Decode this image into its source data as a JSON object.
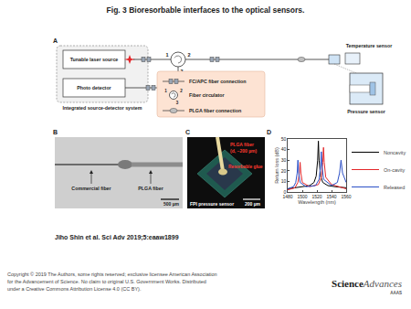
{
  "header": {
    "title": "Fig. 3 Bioresorbable interfaces to the optical sensors."
  },
  "panels": {
    "A": {
      "label": "A",
      "source_detector": {
        "title": "Integrated source-detector system",
        "laser": "Tunable laser source",
        "detector": "Photo detector"
      },
      "ports": [
        "1",
        "2",
        "3"
      ],
      "sensors": {
        "temperature": "Temperature sensor",
        "pressure": "Pressure sensor"
      },
      "key": {
        "connector": "FC/APC fiber connection",
        "circulator": "Fiber circulator",
        "plga": "PLGA fiber connection"
      }
    },
    "B": {
      "label": "B",
      "commercial": "Commercial fiber",
      "plga": "PLGA fiber",
      "scale_bar": "500 µm"
    },
    "C": {
      "label": "C",
      "fiber": "PLGA fiber",
      "fiber_note": "(d, ~200 µm)",
      "glue": "Resorbable glue",
      "sensor": "FPI pressure sensor",
      "scale_bar": "200 µm"
    },
    "D": {
      "label": "D"
    }
  },
  "chart_data": {
    "type": "line",
    "x_label": "Wavelength (nm)",
    "y_label": "Return loss (dB)",
    "xlim": [
      1480,
      1560
    ],
    "xticks": [
      1480,
      1500,
      1520,
      1540,
      1560
    ],
    "ylim": [
      0,
      50
    ],
    "yticks": [
      0,
      10,
      20,
      30,
      40,
      50
    ],
    "grid": false,
    "legend": "right",
    "series": [
      {
        "name": "Noncavity",
        "color": "#000000",
        "x": [
          1480,
          1490,
          1500,
          1510,
          1516,
          1519,
          1521,
          1522,
          1523,
          1525,
          1528,
          1535,
          1545,
          1560
        ],
        "values": [
          3,
          4,
          5,
          6,
          9,
          15,
          30,
          48,
          30,
          15,
          9,
          6,
          5,
          4
        ]
      },
      {
        "name": "On-cavity",
        "color": "#e3262a",
        "x": [
          1480,
          1490,
          1494,
          1496,
          1497,
          1498,
          1500,
          1510,
          1522,
          1526,
          1528,
          1529,
          1530,
          1532,
          1540,
          1550,
          1560
        ],
        "values": [
          2,
          4,
          9,
          18,
          28,
          18,
          9,
          5,
          7,
          14,
          28,
          42,
          28,
          14,
          7,
          5,
          3
        ]
      },
      {
        "name": "Released",
        "color": "#2b4fc7",
        "x": [
          1480,
          1488,
          1491,
          1493,
          1494,
          1495,
          1497,
          1505,
          1518,
          1523,
          1525,
          1526,
          1527,
          1529,
          1540,
          1548,
          1551,
          1553,
          1555,
          1560
        ],
        "values": [
          3,
          5,
          9,
          18,
          30,
          18,
          9,
          5,
          6,
          12,
          24,
          38,
          24,
          12,
          6,
          9,
          18,
          30,
          18,
          9
        ]
      }
    ]
  },
  "citation": "Jiho Shin et al. Sci Adv 2019;5:eaaw1899",
  "footer": {
    "copyright": [
      "Copyright © 2019 The Authors, some rights reserved; exclusive licensee American Association",
      "for the Advancement of Science. No claim to original U.S. Government Works. Distributed",
      "under a Creative Commons Attribution License 4.0 (CC BY)."
    ],
    "logo": {
      "main": "Science",
      "sub": "Advances",
      "org": "AAAS"
    }
  }
}
